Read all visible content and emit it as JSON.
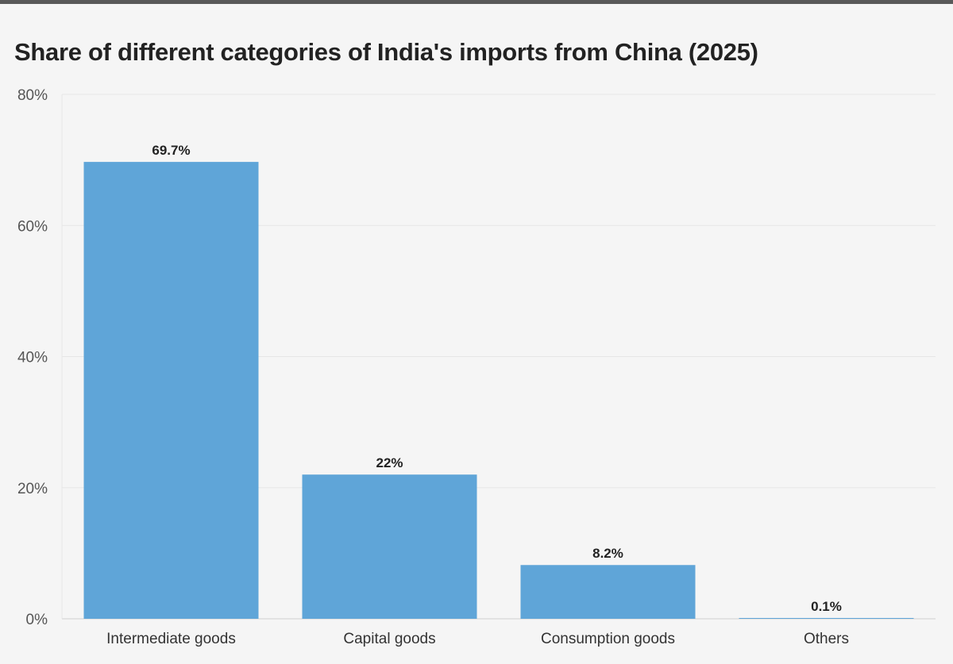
{
  "chart_data": {
    "type": "bar",
    "title": "Share of different categories of India's imports from China (2025)",
    "categories": [
      "Intermediate goods",
      "Capital goods",
      "Consumption goods",
      "Others"
    ],
    "values": [
      69.7,
      22,
      8.2,
      0.1
    ],
    "data_labels": [
      "69.7%",
      "22%",
      "8.2%",
      "0.1%"
    ],
    "ylim": [
      0,
      80
    ],
    "yticks": [
      0,
      20,
      40,
      60,
      80
    ],
    "ytick_labels": [
      "0%",
      "20%",
      "40%",
      "60%",
      "80%"
    ],
    "xlabel": "",
    "ylabel": "",
    "grid": true,
    "legend": "none",
    "bar_color": "#5fa5d8"
  }
}
